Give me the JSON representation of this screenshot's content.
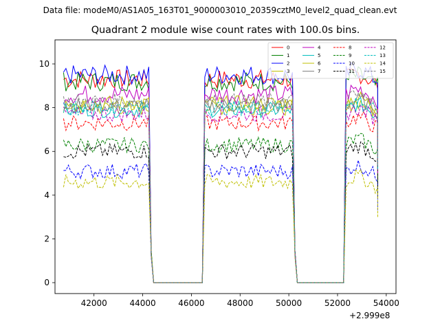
{
  "suptitle": "Data file: modeM0/AS1A05_163T01_9000003010_20359cztM0_level2_quad_clean.evt",
  "chart_data": {
    "type": "line",
    "title": "Quadrant 2 module wise count rates with 100.0s bins.",
    "xlabel": "",
    "ylabel": "",
    "x_offset_label": "+2.999e8",
    "x_offset": 299900000,
    "xlim": [
      40400,
      54400
    ],
    "ylim": [
      -0.5,
      11.1
    ],
    "xticks": [
      42000,
      44000,
      46000,
      48000,
      50000,
      52000,
      54000
    ],
    "yticks": [
      0,
      2,
      4,
      6,
      8,
      10
    ],
    "bin_size_s": 100,
    "segments": [
      {
        "on_start": 40750,
        "on_end": 44250
      },
      {
        "off_start": 44450,
        "off_end": 46450
      },
      {
        "on_start": 46550,
        "on_end": 50150
      },
      {
        "off_start": 50250,
        "off_end": 52250
      },
      {
        "on_start": 52350,
        "on_end": 53650
      }
    ],
    "series": [
      {
        "name": "0",
        "color": "#ff0000",
        "style": "solid",
        "mean": 9.3
      },
      {
        "name": "1",
        "color": "#008000",
        "style": "solid",
        "mean": 9.2
      },
      {
        "name": "2",
        "color": "#0000ff",
        "style": "solid",
        "mean": 9.5
      },
      {
        "name": "3",
        "color": "#bfbf00",
        "style": "solid",
        "mean": 8.0
      },
      {
        "name": "4",
        "color": "#bf00bf",
        "style": "solid",
        "mean": 8.6
      },
      {
        "name": "5",
        "color": "#00bfbf",
        "style": "solid",
        "mean": 7.9
      },
      {
        "name": "6",
        "color": "#bfbf00",
        "style": "solid",
        "mean": 8.2
      },
      {
        "name": "7",
        "color": "#808080",
        "style": "solid",
        "mean": 8.1
      },
      {
        "name": "8",
        "color": "#ff0000",
        "style": "dashed",
        "mean": 7.3
      },
      {
        "name": "9",
        "color": "#008000",
        "style": "dashed",
        "mean": 6.3
      },
      {
        "name": "10",
        "color": "#0000ff",
        "style": "dashed",
        "mean": 5.1
      },
      {
        "name": "11",
        "color": "#000000",
        "style": "dashed",
        "mean": 6.0
      },
      {
        "name": "12",
        "color": "#bf00bf",
        "style": "dashed",
        "mean": 7.7
      },
      {
        "name": "13",
        "color": "#00bfbf",
        "style": "dashed",
        "mean": 8.0
      },
      {
        "name": "14",
        "color": "#bfbf00",
        "style": "dashed",
        "mean": 4.6
      },
      {
        "name": "15",
        "color": "#808080",
        "style": "dashed",
        "mean": 8.3
      }
    ],
    "legend": {
      "location": "top-right",
      "columns": 4
    }
  }
}
